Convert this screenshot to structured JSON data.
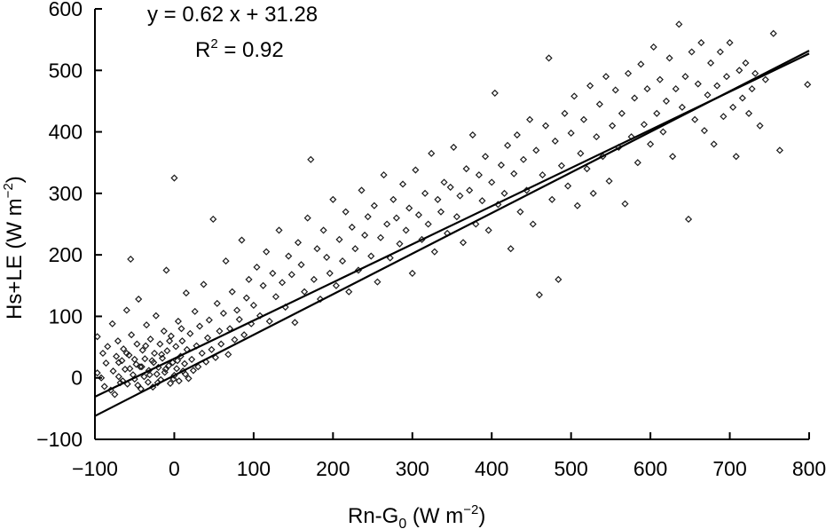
{
  "chart_data": {
    "type": "scatter",
    "title": "",
    "xlabel": {
      "main": "Rn-G",
      "sub": "0",
      "units_open": " (W m",
      "units_sup": "−2",
      "units_close": ")"
    },
    "ylabel": {
      "main": "Hs+LE (W m",
      "units_sup": "−2",
      "units_close": ")"
    },
    "xlim": [
      -100,
      800
    ],
    "ylim": [
      -100,
      600
    ],
    "x_ticks": [
      {
        "value": -100,
        "label": "−100"
      },
      {
        "value": 0,
        "label": "0"
      },
      {
        "value": 100,
        "label": "100"
      },
      {
        "value": 200,
        "label": "200"
      },
      {
        "value": 300,
        "label": "300"
      },
      {
        "value": 400,
        "label": "400"
      },
      {
        "value": 500,
        "label": "500"
      },
      {
        "value": 600,
        "label": "600"
      },
      {
        "value": 700,
        "label": "700"
      },
      {
        "value": 800,
        "label": "800"
      }
    ],
    "y_ticks": [
      {
        "value": -100,
        "label": "−100"
      },
      {
        "value": 0,
        "label": "0"
      },
      {
        "value": 100,
        "label": "100"
      },
      {
        "value": 200,
        "label": "200"
      },
      {
        "value": 300,
        "label": "300"
      },
      {
        "value": 400,
        "label": "400"
      },
      {
        "value": 500,
        "label": "500"
      },
      {
        "value": 600,
        "label": "600"
      }
    ],
    "annotations": {
      "equation": "y = 0.62 x + 31.28",
      "r2_prefix": "R",
      "r2_sup": "2",
      "r2_suffix": " = 0.92"
    },
    "trendlines": [
      {
        "slope": 0.62,
        "intercept": 31.28,
        "x_range": [
          -100,
          800
        ]
      },
      {
        "slope": 0.66,
        "intercept": 4,
        "x_range": [
          -100,
          800
        ]
      }
    ],
    "marker": "diamond-open",
    "series": [
      {
        "points": [
          [
            -97,
            67
          ],
          [
            -97,
            8
          ],
          [
            -92,
            0
          ],
          [
            -90,
            40
          ],
          [
            -88,
            -14
          ],
          [
            -86,
            24
          ],
          [
            -84,
            51
          ],
          [
            -80,
            -20
          ],
          [
            -78,
            88
          ],
          [
            -77,
            11
          ],
          [
            -75,
            -27
          ],
          [
            -73,
            35
          ],
          [
            -71,
            60
          ],
          [
            -70,
            2
          ],
          [
            -68,
            -8
          ],
          [
            -66,
            28
          ],
          [
            -64,
            47
          ],
          [
            -62,
            14
          ],
          [
            -60,
            110
          ],
          [
            -59,
            -10
          ],
          [
            -57,
            37
          ],
          [
            -55,
            193
          ],
          [
            -54,
            70
          ],
          [
            -52,
            5
          ],
          [
            -50,
            -2
          ],
          [
            -48,
            22
          ],
          [
            -47,
            55
          ],
          [
            -45,
            128
          ],
          [
            -43,
            18
          ],
          [
            -42,
            -18
          ],
          [
            -40,
            45
          ],
          [
            -38,
            2
          ],
          [
            -37,
            31
          ],
          [
            -35,
            86
          ],
          [
            -33,
            -7
          ],
          [
            -32,
            12
          ],
          [
            -30,
            63
          ],
          [
            -28,
            28
          ],
          [
            -27,
            -15
          ],
          [
            -25,
            40
          ],
          [
            -23,
            101
          ],
          [
            -22,
            6
          ],
          [
            -20,
            17
          ],
          [
            -18,
            55
          ],
          [
            -17,
            -3
          ],
          [
            -15,
            32
          ],
          [
            -13,
            76
          ],
          [
            -12,
            9
          ],
          [
            -10,
            175
          ],
          [
            -9,
            44
          ],
          [
            -7,
            20
          ],
          [
            -5,
            -9
          ],
          [
            -4,
            68
          ],
          [
            -2,
            25
          ],
          [
            0,
            325
          ],
          [
            0,
            4
          ],
          [
            2,
            51
          ],
          [
            3,
            15
          ],
          [
            5,
            92
          ],
          [
            6,
            -5
          ],
          [
            8,
            35
          ],
          [
            10,
            60
          ],
          [
            11,
            11
          ],
          [
            13,
            23
          ],
          [
            15,
            138
          ],
          [
            16,
            46
          ],
          [
            18,
            -1
          ],
          [
            20,
            72
          ],
          [
            22,
            30
          ],
          [
            24,
            12
          ],
          [
            26,
            108
          ],
          [
            28,
            52
          ],
          [
            30,
            18
          ],
          [
            32,
            84
          ],
          [
            35,
            40
          ],
          [
            37,
            152
          ],
          [
            40,
            26
          ],
          [
            42,
            65
          ],
          [
            44,
            94
          ],
          [
            47,
            46
          ],
          [
            49,
            258
          ],
          [
            52,
            33
          ],
          [
            54,
            121
          ],
          [
            57,
            76
          ],
          [
            59,
            55
          ],
          [
            62,
            105
          ],
          [
            65,
            190
          ],
          [
            68,
            38
          ],
          [
            70,
            80
          ],
          [
            73,
            140
          ],
          [
            76,
            62
          ],
          [
            79,
            110
          ],
          [
            82,
            95
          ],
          [
            85,
            224
          ],
          [
            88,
            70
          ],
          [
            91,
            130
          ],
          [
            94,
            160
          ],
          [
            97,
            88
          ],
          [
            100,
            118
          ],
          [
            104,
            180
          ],
          [
            108,
            101
          ],
          [
            112,
            150
          ],
          [
            116,
            205
          ],
          [
            120,
            92
          ],
          [
            124,
            170
          ],
          [
            128,
            132
          ],
          [
            132,
            240
          ],
          [
            136,
            155
          ],
          [
            140,
            115
          ],
          [
            144,
            198
          ],
          [
            148,
            168
          ],
          [
            152,
            90
          ],
          [
            156,
            220
          ],
          [
            160,
            184
          ],
          [
            164,
            140
          ],
          [
            168,
            260
          ],
          [
            172,
            355
          ],
          [
            176,
            160
          ],
          [
            180,
            210
          ],
          [
            184,
            128
          ],
          [
            188,
            240
          ],
          [
            192,
            196
          ],
          [
            196,
            170
          ],
          [
            200,
            290
          ],
          [
            204,
            150
          ],
          [
            208,
            225
          ],
          [
            212,
            190
          ],
          [
            216,
            270
          ],
          [
            220,
            140
          ],
          [
            224,
            245
          ],
          [
            228,
            210
          ],
          [
            232,
            175
          ],
          [
            236,
            305
          ],
          [
            240,
            232
          ],
          [
            244,
            262
          ],
          [
            248,
            198
          ],
          [
            252,
            280
          ],
          [
            256,
            156
          ],
          [
            260,
            228
          ],
          [
            264,
            330
          ],
          [
            268,
            250
          ],
          [
            272,
            195
          ],
          [
            276,
            290
          ],
          [
            280,
            260
          ],
          [
            284,
            218
          ],
          [
            288,
            315
          ],
          [
            292,
            240
          ],
          [
            296,
            276
          ],
          [
            300,
            170
          ],
          [
            304,
            338
          ],
          [
            308,
            265
          ],
          [
            312,
            225
          ],
          [
            316,
            300
          ],
          [
            320,
            250
          ],
          [
            324,
            365
          ],
          [
            328,
            205
          ],
          [
            332,
            290
          ],
          [
            336,
            270
          ],
          [
            340,
            318
          ],
          [
            344,
            235
          ],
          [
            348,
            310
          ],
          [
            352,
            375
          ],
          [
            356,
            262
          ],
          [
            360,
            296
          ],
          [
            364,
            220
          ],
          [
            368,
            340
          ],
          [
            372,
            305
          ],
          [
            376,
            395
          ],
          [
            380,
            250
          ],
          [
            384,
            330
          ],
          [
            388,
            288
          ],
          [
            392,
            360
          ],
          [
            396,
            240
          ],
          [
            400,
            318
          ],
          [
            404,
            463
          ],
          [
            408,
            282
          ],
          [
            412,
            346
          ],
          [
            416,
            300
          ],
          [
            420,
            378
          ],
          [
            424,
            210
          ],
          [
            428,
            332
          ],
          [
            432,
            395
          ],
          [
            436,
            270
          ],
          [
            440,
            355
          ],
          [
            444,
            305
          ],
          [
            448,
            420
          ],
          [
            452,
            250
          ],
          [
            456,
            370
          ],
          [
            460,
            135
          ],
          [
            464,
            330
          ],
          [
            468,
            410
          ],
          [
            472,
            520
          ],
          [
            476,
            290
          ],
          [
            480,
            385
          ],
          [
            484,
            160
          ],
          [
            488,
            345
          ],
          [
            492,
            430
          ],
          [
            496,
            312
          ],
          [
            500,
            398
          ],
          [
            504,
            458
          ],
          [
            508,
            280
          ],
          [
            512,
            365
          ],
          [
            516,
            420
          ],
          [
            520,
            340
          ],
          [
            524,
            475
          ],
          [
            528,
            300
          ],
          [
            532,
            392
          ],
          [
            536,
            445
          ],
          [
            540,
            360
          ],
          [
            544,
            490
          ],
          [
            548,
            320
          ],
          [
            552,
            410
          ],
          [
            556,
            468
          ],
          [
            560,
            375
          ],
          [
            564,
            430
          ],
          [
            568,
            283
          ],
          [
            572,
            495
          ],
          [
            576,
            392
          ],
          [
            580,
            455
          ],
          [
            584,
            350
          ],
          [
            588,
            510
          ],
          [
            592,
            412
          ],
          [
            596,
            470
          ],
          [
            600,
            380
          ],
          [
            604,
            538
          ],
          [
            608,
            430
          ],
          [
            612,
            485
          ],
          [
            616,
            400
          ],
          [
            620,
            450
          ],
          [
            624,
            520
          ],
          [
            628,
            360
          ],
          [
            632,
            470
          ],
          [
            636,
            575
          ],
          [
            640,
            440
          ],
          [
            644,
            490
          ],
          [
            648,
            258
          ],
          [
            652,
            530
          ],
          [
            656,
            420
          ],
          [
            660,
            478
          ],
          [
            664,
            545
          ],
          [
            668,
            402
          ],
          [
            672,
            460
          ],
          [
            676,
            512
          ],
          [
            680,
            380
          ],
          [
            684,
            475
          ],
          [
            688,
            530
          ],
          [
            692,
            425
          ],
          [
            696,
            490
          ],
          [
            700,
            545
          ],
          [
            704,
            440
          ],
          [
            708,
            360
          ],
          [
            712,
            500
          ],
          [
            716,
            455
          ],
          [
            720,
            512
          ],
          [
            724,
            430
          ],
          [
            728,
            470
          ],
          [
            732,
            495
          ],
          [
            738,
            410
          ],
          [
            745,
            485
          ],
          [
            755,
            560
          ],
          [
            763,
            370
          ],
          [
            798,
            477
          ],
          [
            -70,
            25
          ],
          [
            -65,
            -5
          ],
          [
            -60,
            40
          ],
          [
            -56,
            15
          ],
          [
            -50,
            30
          ],
          [
            -46,
            -12
          ],
          [
            -41,
            18
          ],
          [
            -36,
            52
          ],
          [
            -31,
            5
          ],
          [
            -26,
            25
          ],
          [
            -21,
            -8
          ],
          [
            -16,
            38
          ],
          [
            -11,
            14
          ],
          [
            -6,
            60
          ],
          [
            -1,
            -2
          ],
          [
            4,
            28
          ],
          [
            9,
            80
          ],
          [
            14,
            6
          ]
        ]
      }
    ]
  }
}
